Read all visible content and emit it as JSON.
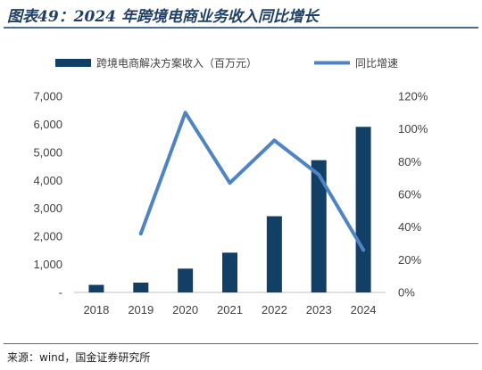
{
  "title": "图表49：2024 年跨境电商业务收入同比增长",
  "source": "来源：wind，国金证券研究所",
  "colors": {
    "bar": "#123f66",
    "line": "#4f84c4",
    "title": "#1f3f66"
  },
  "chart_data": {
    "type": "bar",
    "categories": [
      "2018",
      "2019",
      "2020",
      "2021",
      "2022",
      "2023",
      "2024"
    ],
    "series": [
      {
        "name": "跨境电商解决方案收入（百万元）",
        "type": "bar",
        "axis": "left",
        "values": [
          270,
          350,
          850,
          1420,
          2720,
          4720,
          5910
        ]
      },
      {
        "name": "同比增速",
        "type": "line",
        "axis": "right",
        "values": [
          null,
          0.36,
          1.1,
          0.67,
          0.93,
          0.72,
          0.26
        ]
      }
    ],
    "y_left": {
      "ylim": [
        0,
        7000
      ],
      "ticks": [
        0,
        1000,
        2000,
        3000,
        4000,
        5000,
        6000,
        7000
      ],
      "tick_labels": [
        "-",
        "1,000",
        "2,000",
        "3,000",
        "4,000",
        "5,000",
        "6,000",
        "7,000"
      ]
    },
    "y_right": {
      "ylim": [
        0,
        1.2
      ],
      "ticks": [
        0,
        0.2,
        0.4,
        0.6,
        0.8,
        1.0,
        1.2
      ],
      "tick_labels": [
        "0%",
        "20%",
        "40%",
        "60%",
        "80%",
        "100%",
        "120%"
      ]
    },
    "legend_position": "top",
    "grid": false
  }
}
